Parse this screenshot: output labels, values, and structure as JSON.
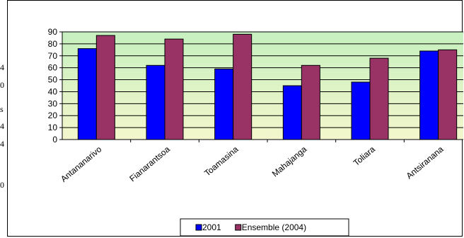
{
  "chart_data": {
    "type": "bar",
    "categories": [
      "Antananarivo",
      "Fianarantsoa",
      "Toamasina",
      "Mahajanga",
      "Toliara",
      "Antsiranana"
    ],
    "series": [
      {
        "name": "2001",
        "values": [
          76,
          62,
          59,
          45,
          48,
          74
        ],
        "color": "#0000ff"
      },
      {
        "name": "Ensemble (2004)",
        "values": [
          87,
          84,
          88,
          62,
          68,
          75
        ],
        "color": "#993366"
      }
    ],
    "ylim": [
      0,
      90
    ],
    "yticks": [
      0,
      10,
      20,
      30,
      40,
      50,
      60,
      70,
      80,
      90
    ],
    "title": "",
    "xlabel": "",
    "ylabel": "",
    "grid": true,
    "legend_position": "bottom",
    "plot_background": "gradient light yellow to light green"
  },
  "left_edge_fragments": [
    "4",
    "0",
    "s",
    "4",
    "4",
    "0"
  ]
}
